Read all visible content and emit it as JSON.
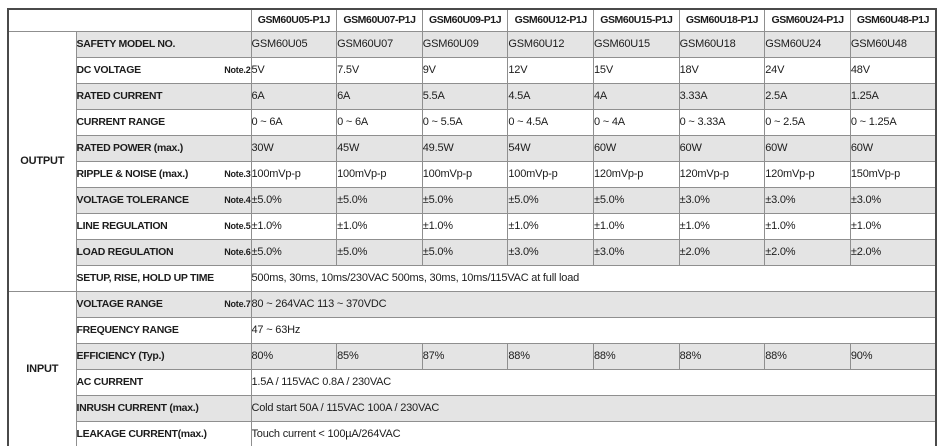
{
  "table": {
    "corner_label": "",
    "columns": [
      "GSM60U05-P1J",
      "GSM60U07-P1J",
      "GSM60U09-P1J",
      "GSM60U12-P1J",
      "GSM60U15-P1J",
      "GSM60U18-P1J",
      "GSM60U24-P1J",
      "GSM60U48-P1J"
    ],
    "sections": [
      {
        "name": "OUTPUT",
        "rows": [
          {
            "label": "SAFETY MODEL NO.",
            "note": "",
            "values": [
              "GSM60U05",
              "GSM60U07",
              "GSM60U09",
              "GSM60U12",
              "GSM60U15",
              "GSM60U18",
              "GSM60U24",
              "GSM60U48"
            ]
          },
          {
            "label": "DC VOLTAGE",
            "note": "Note.2",
            "values": [
              "5V",
              "7.5V",
              "9V",
              "12V",
              "15V",
              "18V",
              "24V",
              "48V"
            ]
          },
          {
            "label": "RATED CURRENT",
            "note": "",
            "values": [
              "6A",
              "6A",
              "5.5A",
              "4.5A",
              "4A",
              "3.33A",
              "2.5A",
              "1.25A"
            ]
          },
          {
            "label": "CURRENT RANGE",
            "note": "",
            "values": [
              "0 ~ 6A",
              "0 ~ 6A",
              "0 ~ 5.5A",
              "0 ~ 4.5A",
              "0 ~ 4A",
              "0 ~ 3.33A",
              "0 ~ 2.5A",
              "0 ~ 1.25A"
            ]
          },
          {
            "label": "RATED POWER (max.)",
            "note": "",
            "values": [
              "30W",
              "45W",
              "49.5W",
              "54W",
              "60W",
              "60W",
              "60W",
              "60W"
            ]
          },
          {
            "label": "RIPPLE & NOISE (max.)",
            "note": "Note.3",
            "values": [
              "100mVp-p",
              "100mVp-p",
              "100mVp-p",
              "100mVp-p",
              "120mVp-p",
              "120mVp-p",
              "120mVp-p",
              "150mVp-p"
            ]
          },
          {
            "label": "VOLTAGE TOLERANCE",
            "note": "Note.4",
            "values": [
              "±5.0%",
              "±5.0%",
              "±5.0%",
              "±5.0%",
              "±5.0%",
              "±3.0%",
              "±3.0%",
              "±3.0%"
            ]
          },
          {
            "label": "LINE REGULATION",
            "note": "Note.5",
            "values": [
              "±1.0%",
              "±1.0%",
              "±1.0%",
              "±1.0%",
              "±1.0%",
              "±1.0%",
              "±1.0%",
              "±1.0%"
            ]
          },
          {
            "label": "LOAD REGULATION",
            "note": "Note.6",
            "values": [
              "±5.0%",
              "±5.0%",
              "±5.0%",
              "±3.0%",
              "±3.0%",
              "±2.0%",
              "±2.0%",
              "±2.0%"
            ]
          },
          {
            "label": "SETUP, RISE, HOLD UP TIME",
            "note": "",
            "span_value": "500ms, 30ms, 10ms/230VAC        500ms, 30ms, 10ms/115VAC  at full load"
          }
        ]
      },
      {
        "name": "INPUT",
        "rows": [
          {
            "label": "VOLTAGE RANGE",
            "note": "Note.7",
            "span_value": "80 ~ 264VAC        113 ~ 370VDC"
          },
          {
            "label": "FREQUENCY RANGE",
            "note": "",
            "span_value": "47 ~ 63Hz"
          },
          {
            "label": "EFFICIENCY (Typ.)",
            "note": "",
            "values": [
              "80%",
              "85%",
              "87%",
              "88%",
              "88%",
              "88%",
              "88%",
              "90%"
            ]
          },
          {
            "label": "AC CURRENT",
            "note": "",
            "span_value": "1.5A / 115VAC        0.8A / 230VAC"
          },
          {
            "label": "INRUSH CURRENT (max.)",
            "note": "",
            "span_value": "Cold start  50A / 115VAC        100A / 230VAC"
          },
          {
            "label": "LEAKAGE CURRENT(max.)",
            "note": "",
            "span_value": "Touch current < 100µA/264VAC"
          }
        ]
      }
    ],
    "colors": {
      "row_shade": "#e4e4e4",
      "inner_border": "#8f8f8f",
      "outer_border": "#4a4a4a",
      "text": "#1c1c1c"
    }
  }
}
